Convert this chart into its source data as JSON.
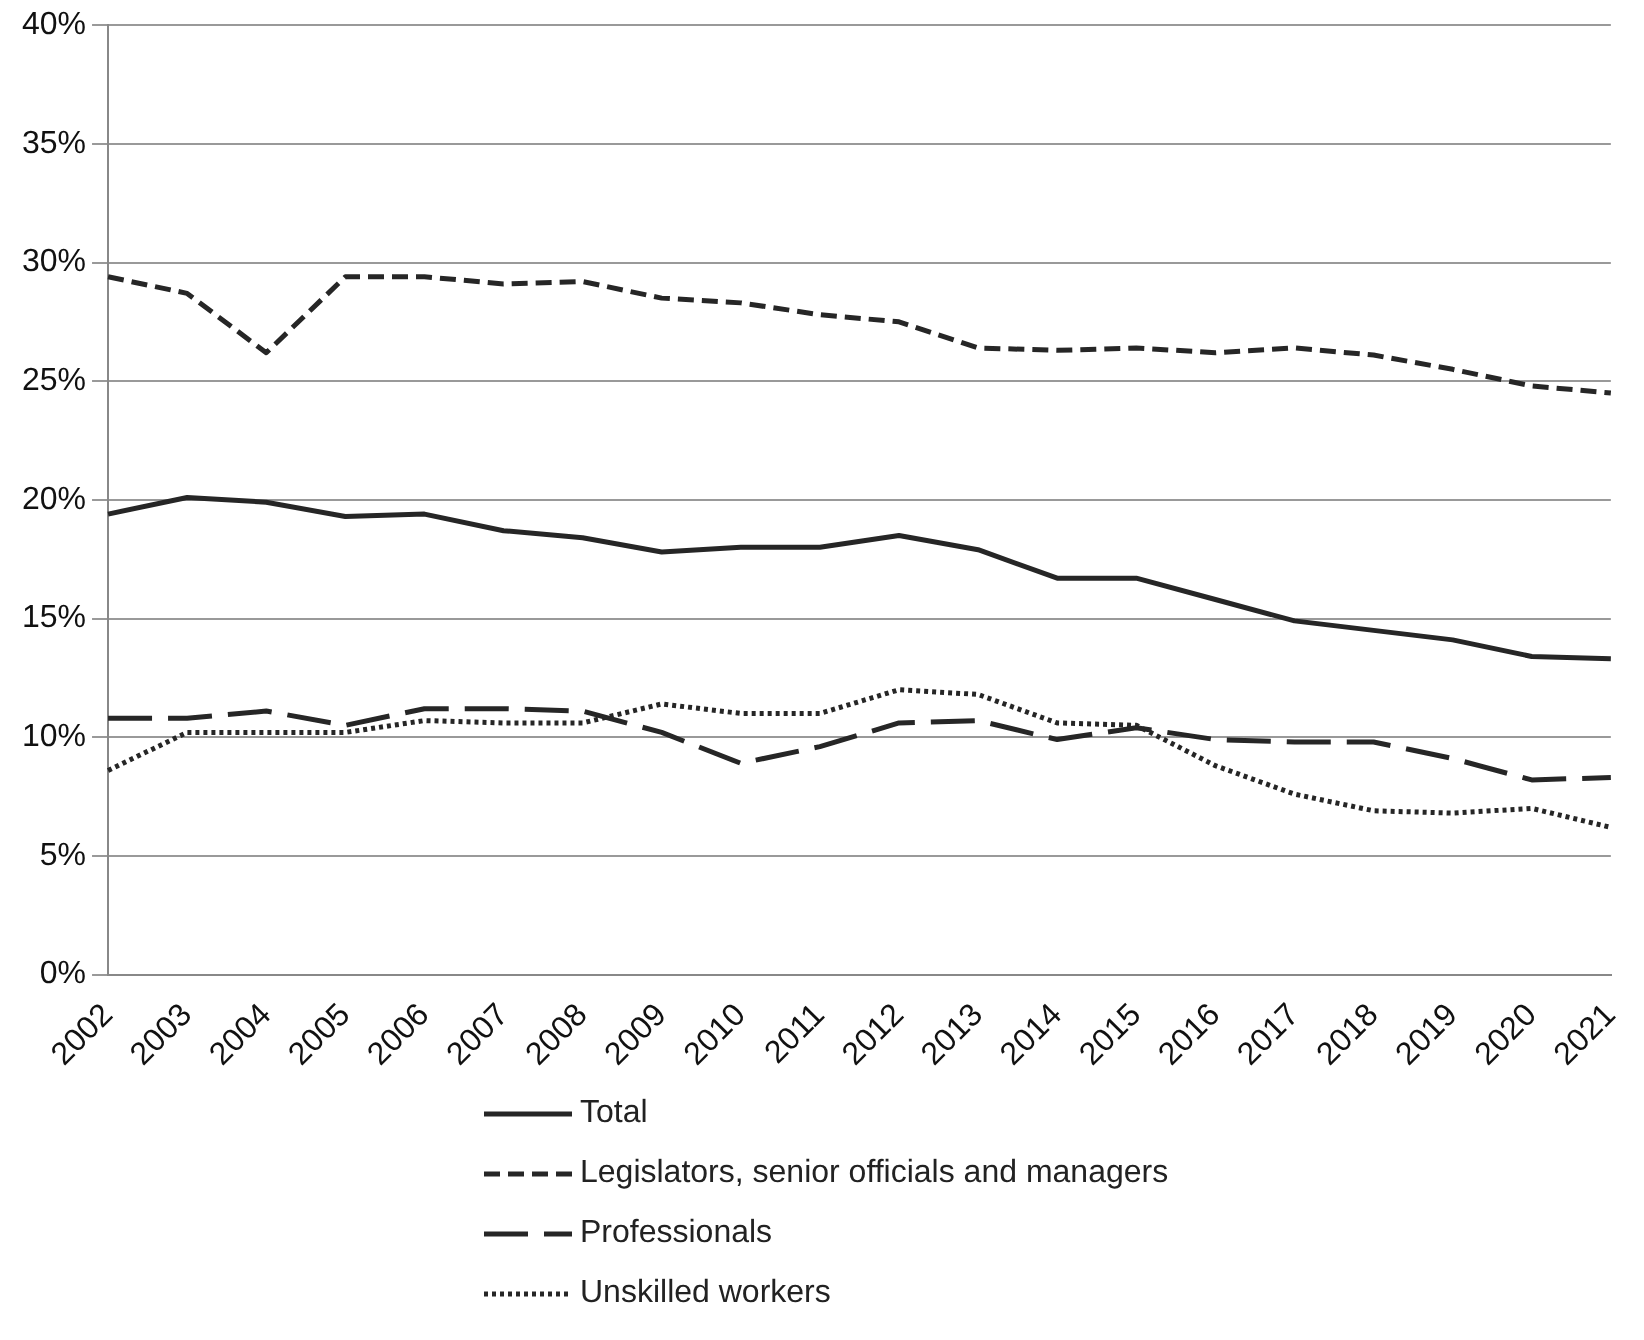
{
  "chart_data": {
    "type": "line",
    "categories": [
      "2002",
      "2003",
      "2004",
      "2005",
      "2006",
      "2007",
      "2008",
      "2009",
      "2010",
      "2011",
      "2012",
      "2013",
      "2014",
      "2015",
      "2016",
      "2017",
      "2018",
      "2019",
      "2020",
      "2021"
    ],
    "ylim": [
      0,
      40
    ],
    "yticks": [
      {
        "value": 0,
        "label": "0%"
      },
      {
        "value": 5,
        "label": "5%"
      },
      {
        "value": 10,
        "label": "10%"
      },
      {
        "value": 15,
        "label": "15%"
      },
      {
        "value": 20,
        "label": "20%"
      },
      {
        "value": 25,
        "label": "25%"
      },
      {
        "value": 30,
        "label": "30%"
      },
      {
        "value": 35,
        "label": "35%"
      },
      {
        "value": 40,
        "label": "40%"
      }
    ],
    "grid": "y",
    "legend": "bottom",
    "marker": "none",
    "series": [
      {
        "name": "Total",
        "color": "#262626",
        "line_style": "solid",
        "values": [
          19.4,
          20.1,
          19.9,
          19.3,
          19.4,
          18.7,
          18.4,
          17.8,
          18.0,
          18.0,
          18.5,
          17.9,
          16.7,
          16.7,
          15.8,
          14.9,
          14.5,
          14.1,
          13.4,
          13.3
        ]
      },
      {
        "name": "Legislators, senior officials and managers",
        "color": "#262626",
        "line_style": "dashed",
        "values": [
          29.4,
          28.7,
          26.2,
          29.4,
          29.4,
          29.1,
          29.2,
          28.5,
          28.3,
          27.8,
          27.5,
          26.4,
          26.3,
          26.4,
          26.2,
          26.4,
          26.1,
          25.5,
          24.8,
          24.5
        ]
      },
      {
        "name": "Professionals",
        "color": "#262626",
        "line_style": "longdash",
        "values": [
          10.8,
          10.8,
          11.1,
          10.5,
          11.2,
          11.2,
          11.1,
          10.2,
          8.9,
          9.6,
          10.6,
          10.7,
          9.9,
          10.4,
          9.9,
          9.8,
          9.8,
          9.1,
          8.2,
          8.3
        ]
      },
      {
        "name": "Unskilled workers",
        "color": "#262626",
        "line_style": "dotted",
        "values": [
          8.6,
          10.2,
          10.2,
          10.2,
          10.7,
          10.6,
          10.6,
          11.4,
          11.0,
          11.0,
          12.0,
          11.8,
          10.6,
          10.5,
          8.8,
          7.6,
          6.9,
          6.8,
          7.0,
          6.2
        ]
      }
    ]
  }
}
